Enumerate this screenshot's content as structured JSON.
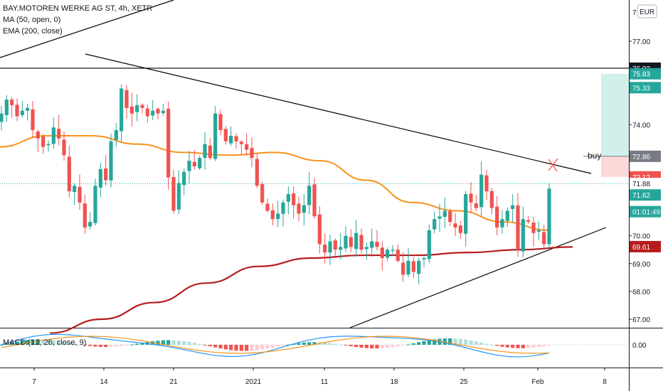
{
  "legend": {
    "symbol_line": "BAY.MOTOREN WERKE AG ST, 4h, XETR",
    "ma_line": "MA (50, open, 0)",
    "ema_line": "EMA (200, close)",
    "macd_line": "MACD (12, 26, close, 9)"
  },
  "currency": "EUR",
  "annotation_buy": "buy",
  "colors": {
    "up": "#26a69a",
    "down": "#ef5350",
    "ma": "#f7931a",
    "ema": "#b71c1c",
    "macd": "#2196f3",
    "signal": "#f7931a",
    "trend": "#000000",
    "target_zone": "#cdeee9",
    "stop_zone": "#fbd5d5"
  },
  "chart_data": {
    "type": "candlestick",
    "title": "BAY.MOTOREN WERKE AG ST, 4h, XETR",
    "price_axis": {
      "ticks": [
        "77.00",
        "74.00",
        "70.00",
        "69.00",
        "68.00",
        "67.00"
      ],
      "top_label": "7",
      "ylim": [
        66.6,
        77.4
      ]
    },
    "time_axis": {
      "labels": [
        "7",
        "14",
        "21",
        "2021",
        "11",
        "18",
        "25",
        "Feb",
        "8"
      ]
    },
    "price_tags": [
      {
        "value": "76.03",
        "bg": "#131722",
        "fg": "#ffffff"
      },
      {
        "value": "75.83",
        "bg": "#26a69a",
        "fg": "#ffffff"
      },
      {
        "value": "75.33",
        "bg": "#26a69a",
        "fg": "#ffffff"
      },
      {
        "value": "72.86",
        "bg": "#787b86",
        "fg": "#ffffff"
      },
      {
        "value": "72.12",
        "bg": "#ef5350",
        "fg": "#ffffff"
      },
      {
        "value": "71.88",
        "bg": "#ffffff",
        "fg": "#131722"
      },
      {
        "value": "71.62",
        "bg": "#26a69a",
        "fg": "#ffffff"
      },
      {
        "value": "01:01:49",
        "bg": "#26a69a",
        "fg": "#ffffff"
      },
      {
        "value": "69.61",
        "bg": "#b71c1c",
        "fg": "#ffffff"
      }
    ],
    "horizontal_line": 76.03,
    "trade_setup": {
      "entry": 72.86,
      "stop": 72.12,
      "target": 75.83
    },
    "close": [
      74.4,
      74.9,
      74.7,
      74.3,
      74.5,
      74.6,
      73.8,
      73.5,
      73.2,
      73.3,
      73.9,
      73.5,
      72.9,
      71.6,
      71.8,
      71.2,
      70.3,
      70.5,
      71.8,
      72.4,
      72.0,
      73.4,
      73.8,
      75.3,
      74.6,
      74.4,
      74.7,
      74.6,
      74.3,
      74.5,
      74.4,
      74.5,
      72.1,
      70.9,
      71.9,
      72.3,
      72.7,
      72.5,
      72.8,
      73.3,
      72.8,
      74.4,
      73.8,
      73.4,
      73.6,
      73.4,
      73.3,
      73.1,
      72.8,
      71.8,
      71.2,
      70.9,
      70.6,
      70.8,
      71.2,
      71.5,
      71.1,
      70.8,
      71.1,
      71.8,
      70.7,
      69.7,
      69.4,
      69.8,
      69.5,
      69.6,
      70.0,
      69.6,
      70.1,
      69.5,
      69.6,
      69.8,
      69.6,
      69.2,
      69.5,
      69.5,
      69.1,
      68.6,
      69.1,
      68.7,
      69.1,
      69.2,
      70.2,
      70.6,
      70.7,
      70.9,
      70.5,
      70.3,
      70.1,
      71.5,
      71.2,
      71.0,
      72.2,
      71.6,
      71.0,
      70.3,
      70.6,
      70.9,
      71.1,
      69.5,
      70.6,
      70.5,
      70.1,
      70.2,
      69.7,
      71.7
    ],
    "ma50_sample": [
      73.2,
      73.6,
      73.6,
      73.3,
      73.0,
      72.9,
      73.0,
      72.7,
      72.0,
      71.2,
      70.9,
      70.5,
      70.2
    ],
    "ema200_sample": [
      66.5,
      67.0,
      67.6,
      68.3,
      68.9,
      69.2,
      69.3,
      69.3,
      69.4,
      69.5,
      69.6
    ],
    "macd_axis": {
      "tick": "0.00"
    }
  }
}
